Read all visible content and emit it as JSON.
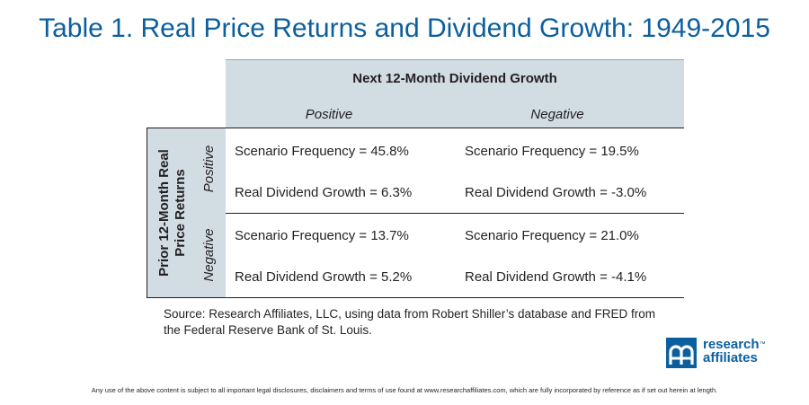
{
  "title": "Table 1.  Real Price Returns and Dividend Growth: 1949-2015",
  "table": {
    "column_header": "Next 12-Month Dividend Growth",
    "column_positive": "Positive",
    "column_negative": "Negative",
    "row_header_line1": "Prior 12-Month Real",
    "row_header_line2": "Price Returns",
    "row_positive": "Positive",
    "row_negative": "Negative",
    "cells": {
      "pos_pos_freq": "Scenario Frequency = 45.8%",
      "pos_pos_growth": "Real Dividend Growth = 6.3%",
      "pos_neg_freq": "Scenario Frequency = 19.5%",
      "pos_neg_growth": "Real Dividend Growth = -3.0%",
      "neg_pos_freq": "Scenario Frequency = 13.7%",
      "neg_pos_growth": "Real Dividend Growth = 5.2%",
      "neg_neg_freq": "Scenario Frequency = 21.0%",
      "neg_neg_growth": "Real Dividend Growth = -4.1%"
    }
  },
  "source_line1": "Source:  Research Affiliates, LLC, using data from Robert Shiller’s database and FRED from",
  "source_line2": "the Federal Reserve Bank of St. Louis.",
  "logo": {
    "line1": "research",
    "tm": "™",
    "line2": "affiliates"
  },
  "disclaimer": "Any use of the above content is subject to all important legal disclosures, disclaimers and terms of use found at www.researchaffiliates.com, which are fully incorporated by reference as if set out herein at length.",
  "colors": {
    "brand": "#0c5f9e",
    "header_fill": "#d1dce3"
  }
}
